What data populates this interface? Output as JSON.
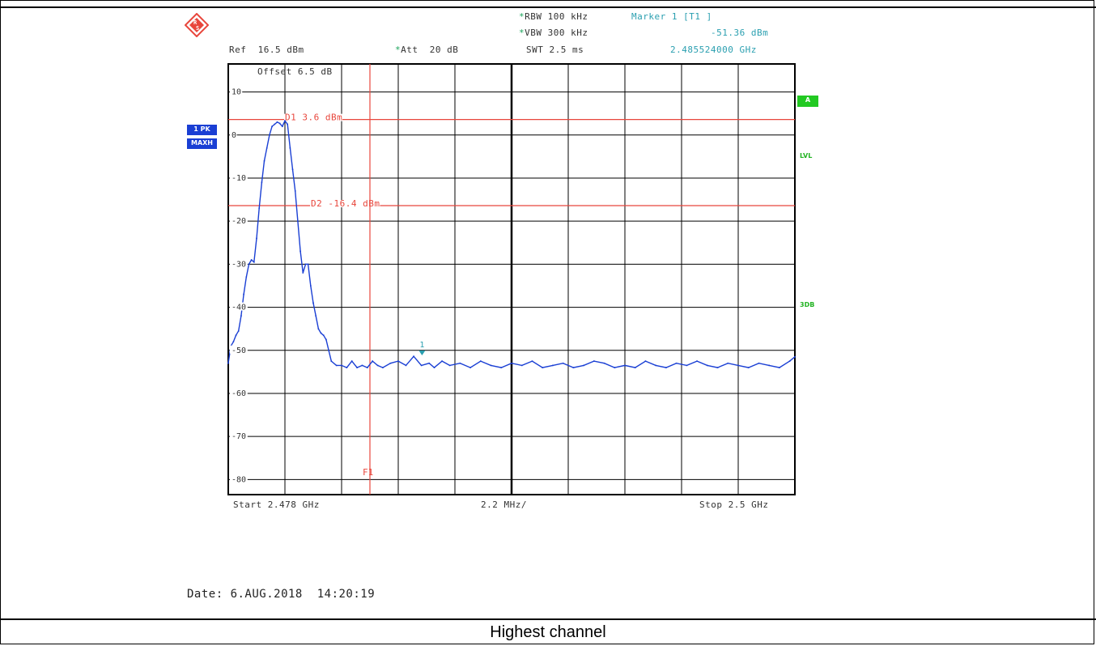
{
  "header": {
    "rbw": "RBW 100 kHz",
    "vbw": "VBW 300 kHz",
    "swt": "SWT 2.5 ms",
    "ref": "Ref  16.5 dBm",
    "att": "Att  20 dB",
    "marker_title": "Marker 1 [T1 ]",
    "marker_level": "-51.36 dBm",
    "marker_freq": "2.485524000 GHz",
    "offset": "Offset  6.5 dB"
  },
  "badges": {
    "trace": "1 PK",
    "detector": "MAXH",
    "a": "A",
    "lvl": "LVL",
    "db3": "3DB"
  },
  "footer": {
    "start": "Start 2.478 GHz",
    "span": "2.2 MHz/",
    "stop": "Stop 2.5 GHz",
    "date": "Date: 6.AUG.2018  14:20:19",
    "caption": "Highest channel"
  },
  "colors": {
    "trace": "#1a3fd4",
    "lines": "#e8463c",
    "grid": "#000000",
    "marker": "#2a9fb0",
    "green": "#22c922",
    "badge_blue": "#1a3fd4"
  },
  "chart_data": {
    "type": "line",
    "x_unit": "GHz",
    "y_unit": "dBm",
    "xlim": [
      2.478,
      2.5
    ],
    "ylim": [
      -83.5,
      16.5
    ],
    "y_ticks": [
      10,
      0,
      -10,
      -20,
      -30,
      -40,
      -50,
      -60,
      -70,
      -80
    ],
    "y_tick_labels": [
      "10",
      "0",
      "-10",
      "-20",
      "-30",
      "-40",
      "-50",
      "-60",
      "-70",
      "-80"
    ],
    "grid": true,
    "display_lines": [
      {
        "name": "D1",
        "label": "D1 3.6 dBm",
        "value": 3.6
      },
      {
        "name": "D2",
        "label": "D2 -16.4 dBm",
        "value": -16.4
      }
    ],
    "frequency_line": {
      "label": "F1",
      "value": 2.4835
    },
    "marker": {
      "label": "1",
      "x": 2.485524,
      "y": -51.36
    },
    "series": [
      {
        "x": [
          2.478,
          2.4781,
          2.4782,
          2.4783,
          2.4784,
          2.4785,
          2.4786,
          2.4787,
          2.4788,
          2.4789,
          2.479,
          2.4791,
          2.4792,
          2.4793,
          2.4794,
          2.4795,
          2.4796,
          2.4797,
          2.4798,
          2.4799,
          2.48,
          2.4801,
          2.4802,
          2.4803,
          2.4804,
          2.4805,
          2.4806,
          2.4807,
          2.4808,
          2.4809,
          2.481,
          2.4811,
          2.4812,
          2.4813,
          2.4814,
          2.4815,
          2.4816,
          2.4817,
          2.4818,
          2.4819,
          2.482,
          2.4822,
          2.4824,
          2.4826,
          2.4828,
          2.483,
          2.4832,
          2.4834,
          2.4836,
          2.4838,
          2.484,
          2.4843,
          2.4846,
          2.4849,
          2.4852,
          2.4855,
          2.4858,
          2.486,
          2.4863,
          2.4866,
          2.487,
          2.4874,
          2.4878,
          2.4882,
          2.4886,
          2.489,
          2.4894,
          2.4898,
          2.4902,
          2.4906,
          2.491,
          2.4914,
          2.4918,
          2.4922,
          2.4926,
          2.493,
          2.4934,
          2.4938,
          2.4942,
          2.4946,
          2.495,
          2.4954,
          2.4958,
          2.4962,
          2.4966,
          2.497,
          2.4974,
          2.4978,
          2.4982,
          2.4986,
          2.499,
          2.4994,
          2.4998,
          2.5
        ],
        "y": [
          -53,
          -49,
          -48,
          -46.5,
          -45.5,
          -42,
          -37,
          -33,
          -30,
          -29,
          -29.5,
          -24,
          -17,
          -11,
          -6,
          -3,
          0,
          2,
          2.5,
          3.0,
          2.7,
          2.0,
          3.3,
          2.5,
          -3,
          -8,
          -13,
          -20,
          -27,
          -32,
          -30,
          -30,
          -35,
          -39,
          -42,
          -45,
          -46,
          -46.5,
          -47.5,
          -50,
          -52.5,
          -53.5,
          -53.5,
          -54,
          -52.5,
          -54,
          -53.5,
          -54,
          -52.5,
          -53.5,
          -54,
          -53,
          -52.5,
          -53.5,
          -51.4,
          -53.5,
          -53,
          -54,
          -52.5,
          -53.5,
          -53,
          -54,
          -52.5,
          -53.5,
          -54,
          -53,
          -53.5,
          -52.5,
          -54,
          -53.5,
          -53,
          -54,
          -53.5,
          -52.5,
          -53,
          -54,
          -53.5,
          -54,
          -52.5,
          -53.5,
          -54,
          -53,
          -53.5,
          -52.5,
          -53.5,
          -54,
          -53,
          -53.5,
          -54,
          -53,
          -53.5,
          -54,
          -52.5,
          -51.5
        ]
      }
    ]
  }
}
